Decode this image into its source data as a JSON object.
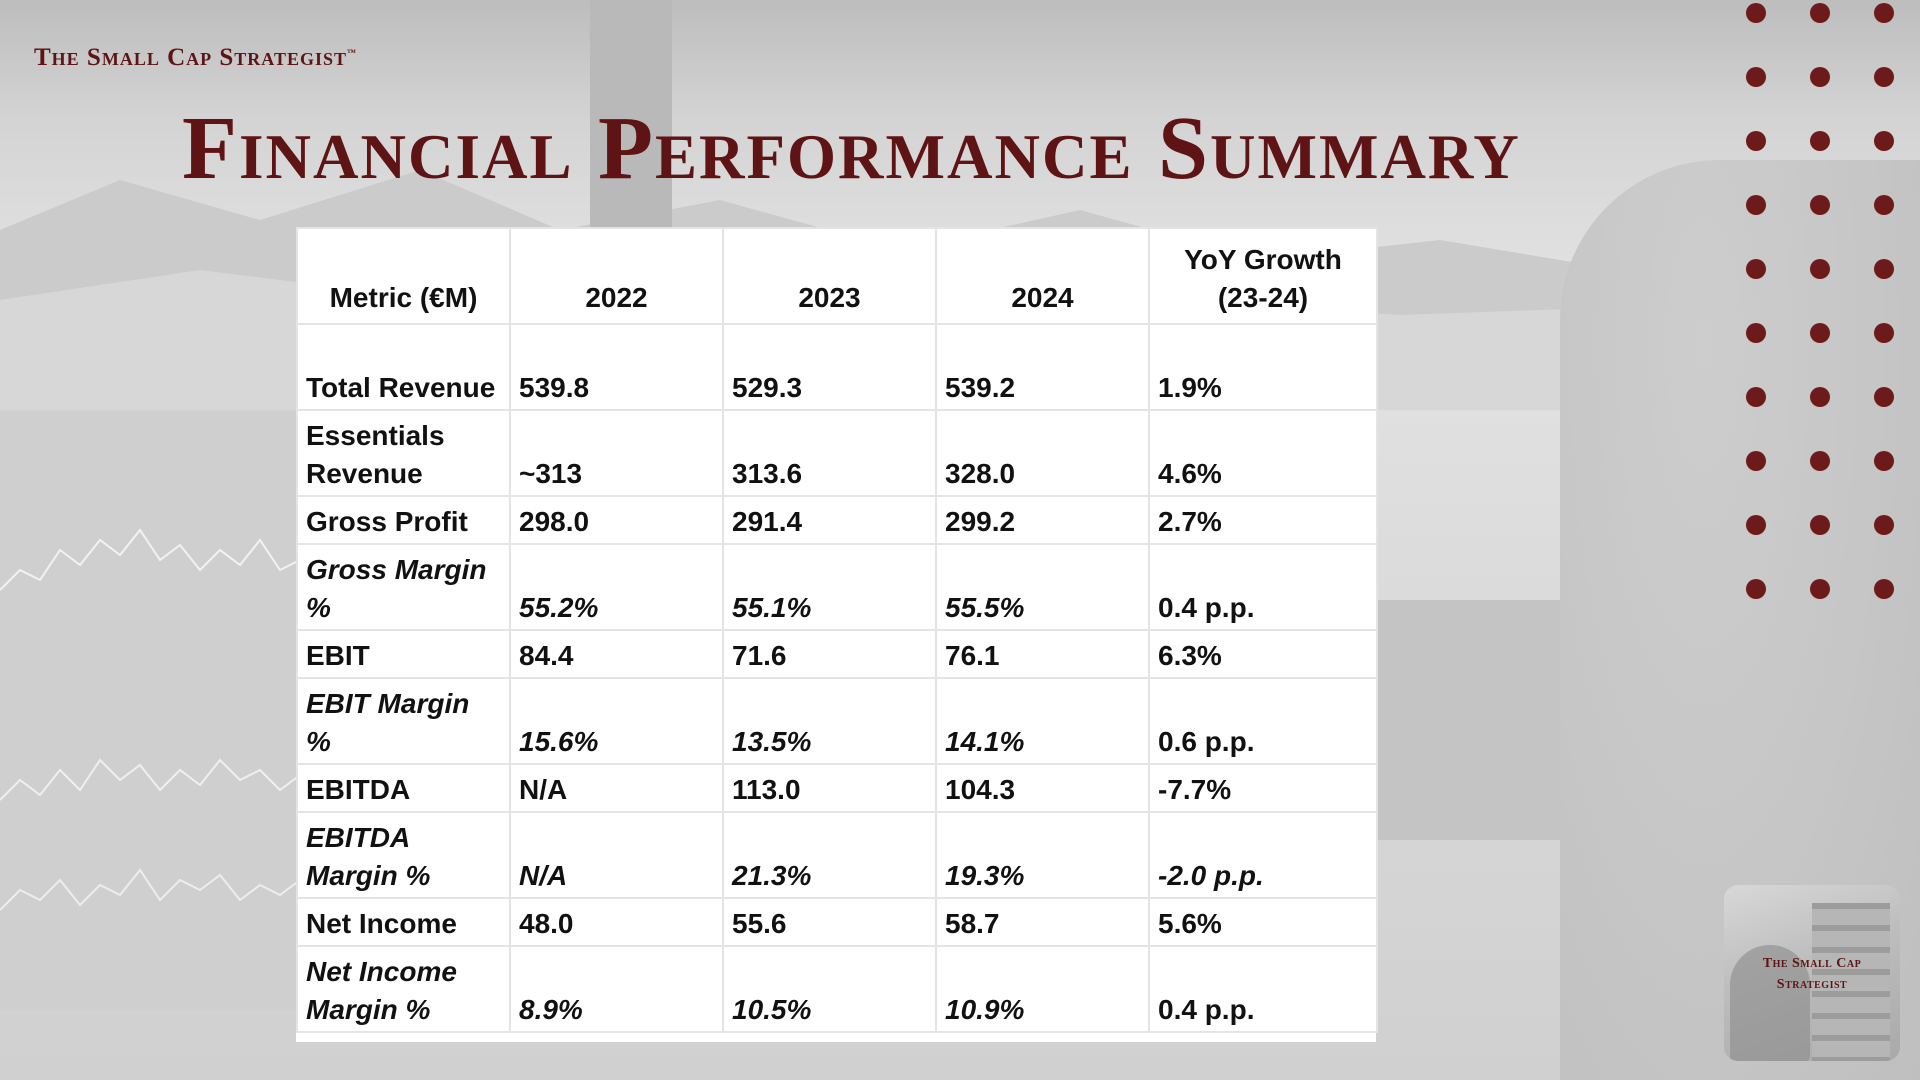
{
  "brand": {
    "name": "The Small Cap Strategist",
    "trademark": "™"
  },
  "title": "Financial Performance Summary",
  "colors": {
    "accent": "#5e1414",
    "dots": "#6e1a1a",
    "table_bg": "#ffffff",
    "grid": "#e4e4e4"
  },
  "table": {
    "headers": [
      "Metric (€M)",
      "2022",
      "2023",
      "2024",
      "YoY Growth (23-24)"
    ],
    "rows": [
      {
        "metric": "Total Revenue",
        "v2022": "539.8",
        "v2023": "529.3",
        "v2024": "539.2",
        "yoy": "1.9%"
      },
      {
        "metric": "Essentials Revenue",
        "v2022": "~313",
        "v2023": "313.6",
        "v2024": "328.0",
        "yoy": "4.6%"
      },
      {
        "metric": "Gross Profit",
        "v2022": "298.0",
        "v2023": "291.4",
        "v2024": "299.2",
        "yoy": "2.7%"
      },
      {
        "metric": "Gross Margin %",
        "v2022": "55.2%",
        "v2023": "55.1%",
        "v2024": "55.5%",
        "yoy": "0.4 p.p."
      },
      {
        "metric": "EBIT",
        "v2022": "84.4",
        "v2023": "71.6",
        "v2024": "76.1",
        "yoy": "6.3%"
      },
      {
        "metric": "EBIT Margin %",
        "v2022": "15.6%",
        "v2023": "13.5%",
        "v2024": "14.1%",
        "yoy": "0.6 p.p."
      },
      {
        "metric": "EBITDA",
        "v2022": "N/A",
        "v2023": "113.0",
        "v2024": "104.3",
        "yoy": "-7.7%"
      },
      {
        "metric": "EBITDA Margin %",
        "v2022": "N/A",
        "v2023": "21.3%",
        "v2024": "19.3%",
        "yoy": "-2.0 p.p."
      },
      {
        "metric": "Net Income",
        "v2022": "48.0",
        "v2023": "55.6",
        "v2024": "58.7",
        "yoy": "5.6%"
      },
      {
        "metric": "Net Income Margin %",
        "v2022": "8.9%",
        "v2023": "10.5%",
        "v2024": "10.9%",
        "yoy": "0.4 p.p."
      }
    ]
  },
  "logo": {
    "line1": "The Small Cap",
    "line2": "Strategist"
  },
  "icons": {
    "decor": "dot-grid-icon",
    "logo": "building-logo-icon"
  }
}
